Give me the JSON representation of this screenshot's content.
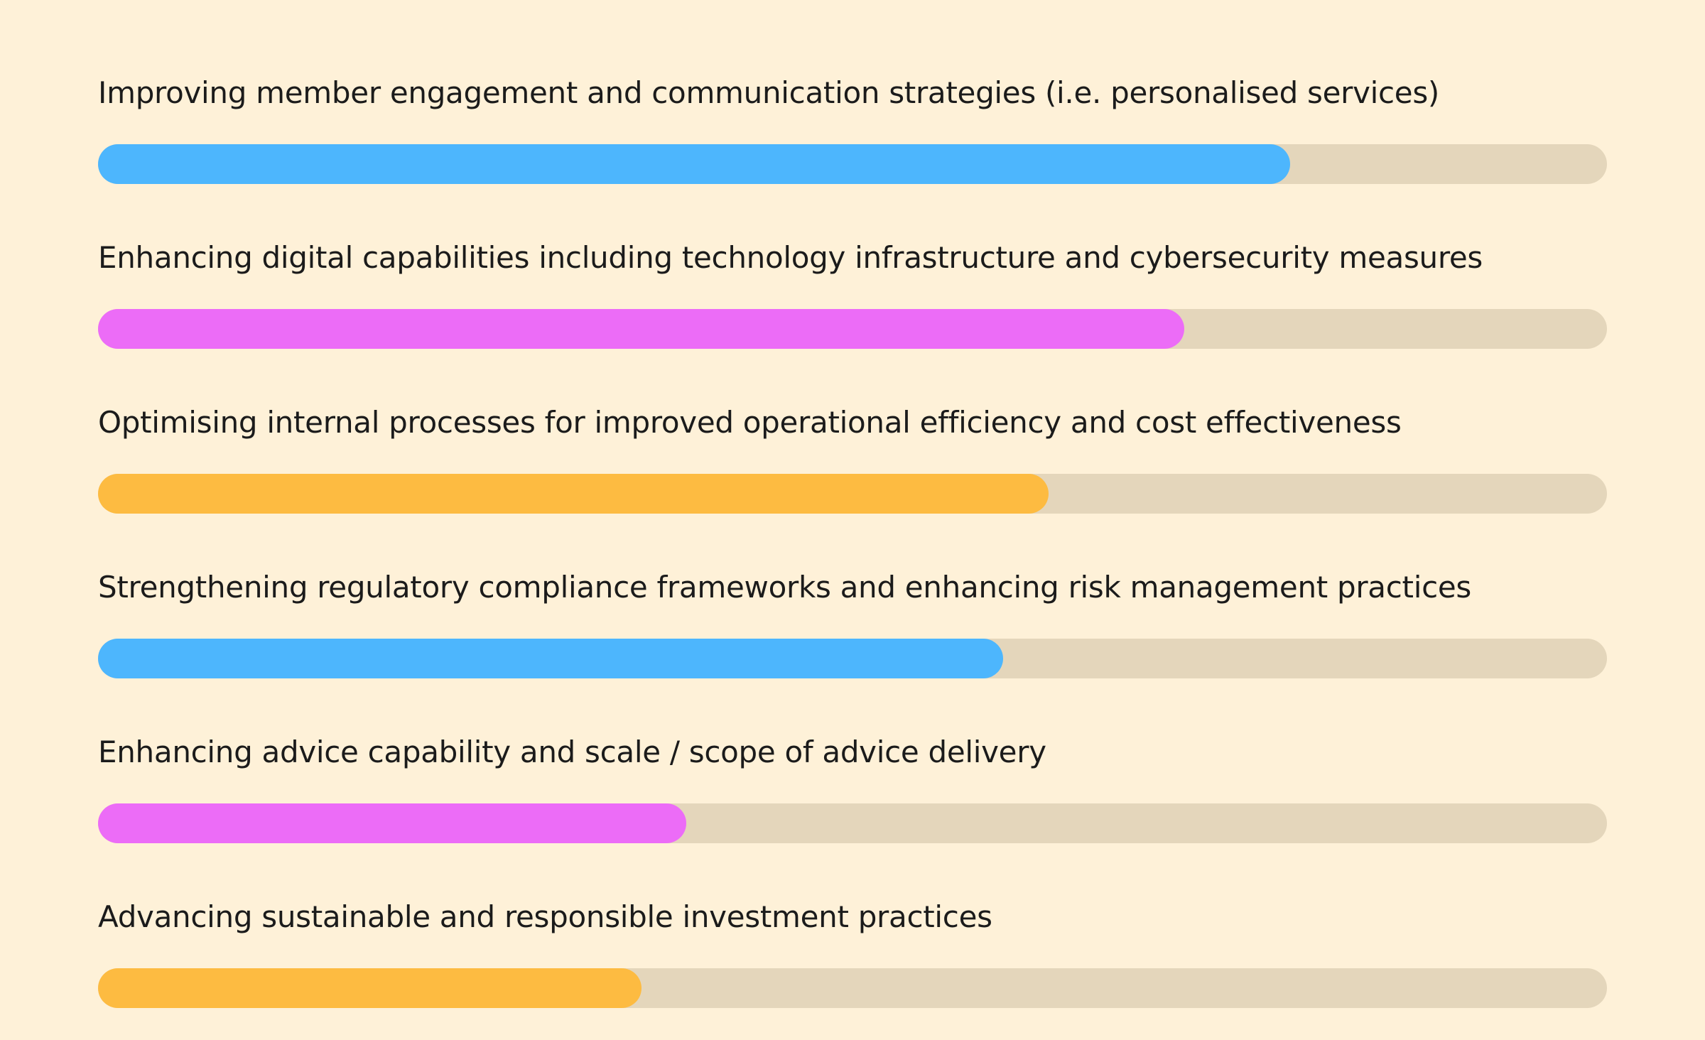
{
  "chart_data": {
    "type": "bar",
    "orientation": "horizontal",
    "title": "",
    "xlabel": "",
    "ylabel": "",
    "xlim": [
      0,
      100
    ],
    "grid": false,
    "categories": [
      "Improving member engagement and communication strategies (i.e. personalised services)",
      "Enhancing digital capabilities including technology infrastructure and cybersecurity measures",
      "Optimising internal processes for improved operational efficiency and cost effectiveness",
      "Strengthening regulatory compliance frameworks and enhancing risk management practices",
      "Enhancing advice capability and scale / scope of advice delivery",
      "Advancing sustainable and responsible investment practices"
    ],
    "values": [
      79,
      72,
      63,
      60,
      39,
      36
    ],
    "bar_colors": [
      "#4db6fd",
      "#ec6cf7",
      "#fdbb41",
      "#4db6fd",
      "#ec6cf7",
      "#fdbb41"
    ],
    "track_color": "#e4d6bb",
    "background_color": "#fef1d8"
  }
}
